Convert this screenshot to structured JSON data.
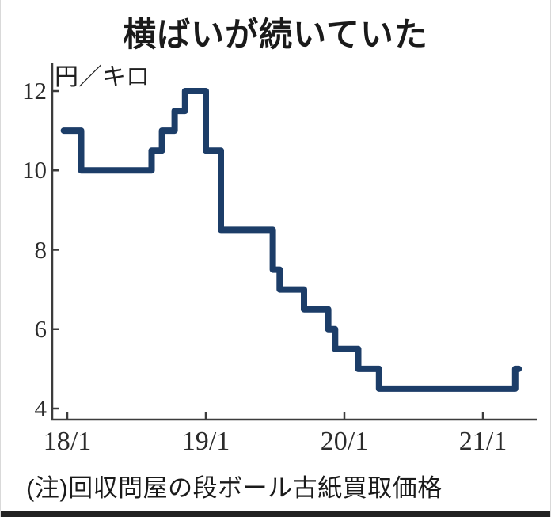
{
  "page": {
    "title": "横ばいが続いていた",
    "note": "(注)回収問屋の段ボール古紙買取価格"
  },
  "chart_data": {
    "type": "line",
    "step": "post",
    "title": "横ばいが続いていた",
    "series_name": "段ボール古紙買取価格",
    "ylabel": "円／キロ",
    "note": "(注)回収問屋の段ボール古紙買取価格",
    "y_ticks": [
      12,
      10,
      8,
      6,
      4
    ],
    "ylim": [
      4,
      12
    ],
    "x_tick_labels": [
      "18/1",
      "19/1",
      "20/1",
      "21/1"
    ],
    "x_tick_months": [
      0,
      12,
      24,
      36
    ],
    "x_end_month": 39.1,
    "grid": false,
    "legend": "none",
    "line_color": "#1c3d68",
    "axis_color": "#3c3c3c",
    "points": [
      {
        "month": "2018/1",
        "m": -0.3,
        "value": 11
      },
      {
        "month": "2018/2",
        "m": 1.2,
        "value": 10
      },
      {
        "month": "2018/8",
        "m": 7.3,
        "value": 10.5
      },
      {
        "month": "2018/9",
        "m": 8.2,
        "value": 11
      },
      {
        "month": "2018/10",
        "m": 9.3,
        "value": 11.5
      },
      {
        "month": "2018/11",
        "m": 10.2,
        "value": 12
      },
      {
        "month": "2019/1",
        "m": 12.0,
        "value": 10.5
      },
      {
        "month": "2019/2",
        "m": 13.3,
        "value": 8.5
      },
      {
        "month": "2019/7",
        "m": 17.8,
        "value": 7.5
      },
      {
        "month": "2019/8",
        "m": 18.4,
        "value": 7
      },
      {
        "month": "2019/10",
        "m": 20.5,
        "value": 6.5
      },
      {
        "month": "2019/11",
        "m": 22.6,
        "value": 6
      },
      {
        "month": "2019/12",
        "m": 23.2,
        "value": 5.5
      },
      {
        "month": "2020/2",
        "m": 25.2,
        "value": 5
      },
      {
        "month": "2020/4",
        "m": 27.0,
        "value": 4.5
      },
      {
        "month": "2021/4",
        "m": 38.8,
        "value": 5
      }
    ]
  }
}
